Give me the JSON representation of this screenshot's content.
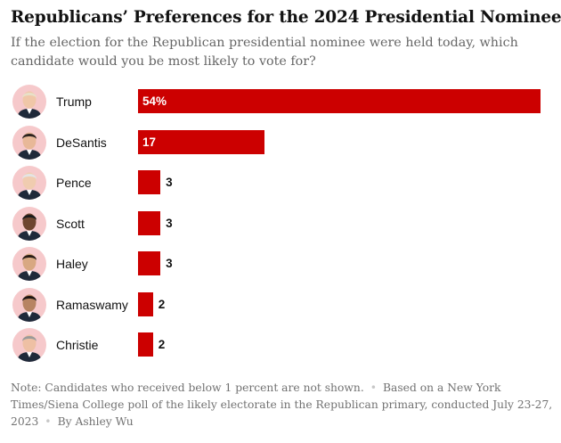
{
  "title": "Republicans’ Preferences for the 2024 Presidential Nominee",
  "subtitle": "If the election for the Republican presidential nominee were held today, which candidate would you be most likely to vote for?",
  "note": {
    "part1": "Note: Candidates who received below 1 percent are not shown.",
    "part2": "Based on a New York Times/Siena College poll of the likely electorate in the Republican primary, conducted July 23-27, 2023",
    "part3": "By Ashley Wu",
    "separator": "•"
  },
  "colors": {
    "bar": "#cc0000",
    "avatar_bg": "#f6c9cb"
  },
  "chart_data": {
    "type": "bar",
    "orientation": "horizontal",
    "categories": [
      "Trump",
      "DeSantis",
      "Pence",
      "Scott",
      "Haley",
      "Ramaswamy",
      "Christie"
    ],
    "values": [
      54,
      17,
      3,
      3,
      3,
      2,
      2
    ],
    "value_labels": [
      "54%",
      "17",
      "3",
      "3",
      "3",
      "2",
      "2"
    ],
    "xlim": [
      0,
      54
    ],
    "grid": false,
    "legend": "none",
    "title": "Republicans’ Preferences for the 2024 Presidential Nominee",
    "xlabel": "",
    "ylabel": ""
  }
}
